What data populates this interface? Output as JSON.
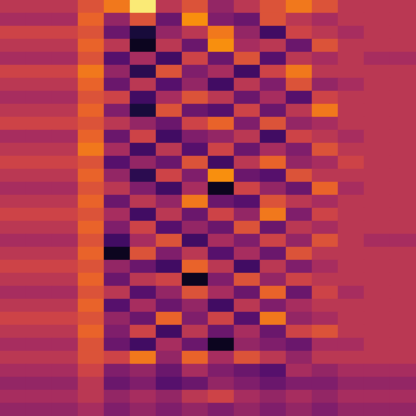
{
  "chart_data": {
    "type": "heatmap",
    "tick_labels": false,
    "color_range": [
      0,
      1
    ],
    "cells": [
      [
        0.5,
        0.5,
        0.5,
        0.6,
        0.7,
        0.95,
        0.5,
        0.6,
        0.4,
        0.5,
        0.6,
        0.7,
        0.6,
        0.5,
        0.5,
        0.5
      ],
      [
        0.45,
        0.45,
        0.45,
        0.65,
        0.4,
        0.6,
        0.3,
        0.75,
        0.35,
        0.3,
        0.6,
        0.5,
        0.45,
        0.5,
        0.5,
        0.5
      ],
      [
        0.55,
        0.55,
        0.55,
        0.6,
        0.3,
        0.1,
        0.4,
        0.5,
        0.7,
        0.4,
        0.2,
        0.55,
        0.5,
        0.45,
        0.5,
        0.5
      ],
      [
        0.5,
        0.5,
        0.5,
        0.65,
        0.5,
        0.05,
        0.5,
        0.3,
        0.75,
        0.45,
        0.5,
        0.3,
        0.6,
        0.5,
        0.5,
        0.5
      ],
      [
        0.45,
        0.45,
        0.45,
        0.6,
        0.25,
        0.45,
        0.2,
        0.55,
        0.3,
        0.6,
        0.25,
        0.5,
        0.45,
        0.5,
        0.45,
        0.45
      ],
      [
        0.55,
        0.55,
        0.55,
        0.7,
        0.4,
        0.15,
        0.6,
        0.35,
        0.45,
        0.2,
        0.55,
        0.7,
        0.5,
        0.5,
        0.5,
        0.5
      ],
      [
        0.5,
        0.5,
        0.5,
        0.65,
        0.3,
        0.5,
        0.25,
        0.4,
        0.2,
        0.5,
        0.35,
        0.6,
        0.4,
        0.45,
        0.5,
        0.5
      ],
      [
        0.45,
        0.45,
        0.45,
        0.6,
        0.55,
        0.2,
        0.45,
        0.6,
        0.5,
        0.3,
        0.45,
        0.25,
        0.55,
        0.5,
        0.5,
        0.5
      ],
      [
        0.5,
        0.5,
        0.5,
        0.65,
        0.35,
        0.1,
        0.6,
        0.3,
        0.25,
        0.55,
        0.3,
        0.5,
        0.7,
        0.5,
        0.5,
        0.5
      ],
      [
        0.55,
        0.55,
        0.55,
        0.6,
        0.5,
        0.4,
        0.3,
        0.55,
        0.65,
        0.35,
        0.6,
        0.4,
        0.45,
        0.5,
        0.5,
        0.5
      ],
      [
        0.45,
        0.45,
        0.45,
        0.65,
        0.3,
        0.55,
        0.2,
        0.35,
        0.4,
        0.5,
        0.2,
        0.55,
        0.5,
        0.45,
        0.5,
        0.5
      ],
      [
        0.5,
        0.5,
        0.5,
        0.7,
        0.45,
        0.2,
        0.5,
        0.25,
        0.55,
        0.3,
        0.45,
        0.35,
        0.6,
        0.5,
        0.5,
        0.5
      ],
      [
        0.55,
        0.55,
        0.55,
        0.6,
        0.25,
        0.4,
        0.3,
        0.6,
        0.2,
        0.5,
        0.65,
        0.4,
        0.45,
        0.55,
        0.5,
        0.5
      ],
      [
        0.5,
        0.5,
        0.5,
        0.65,
        0.4,
        0.15,
        0.55,
        0.35,
        0.75,
        0.3,
        0.25,
        0.6,
        0.5,
        0.5,
        0.5,
        0.5
      ],
      [
        0.45,
        0.45,
        0.45,
        0.6,
        0.5,
        0.35,
        0.2,
        0.45,
        0.05,
        0.55,
        0.4,
        0.3,
        0.65,
        0.45,
        0.5,
        0.5
      ],
      [
        0.5,
        0.5,
        0.5,
        0.65,
        0.3,
        0.5,
        0.4,
        0.7,
        0.3,
        0.25,
        0.6,
        0.5,
        0.45,
        0.5,
        0.5,
        0.5
      ],
      [
        0.55,
        0.55,
        0.55,
        0.6,
        0.45,
        0.2,
        0.5,
        0.3,
        0.55,
        0.4,
        0.7,
        0.35,
        0.55,
        0.5,
        0.5,
        0.5
      ],
      [
        0.5,
        0.5,
        0.5,
        0.65,
        0.35,
        0.55,
        0.25,
        0.4,
        0.3,
        0.6,
        0.3,
        0.5,
        0.45,
        0.5,
        0.5,
        0.5
      ],
      [
        0.45,
        0.45,
        0.45,
        0.6,
        0.2,
        0.45,
        0.6,
        0.2,
        0.45,
        0.35,
        0.55,
        0.4,
        0.6,
        0.5,
        0.45,
        0.45
      ],
      [
        0.5,
        0.5,
        0.5,
        0.65,
        0.05,
        0.6,
        0.35,
        0.5,
        0.25,
        0.45,
        0.3,
        0.6,
        0.5,
        0.5,
        0.5,
        0.5
      ],
      [
        0.55,
        0.55,
        0.55,
        0.6,
        0.4,
        0.3,
        0.2,
        0.65,
        0.5,
        0.2,
        0.5,
        0.35,
        0.45,
        0.5,
        0.5,
        0.5
      ],
      [
        0.5,
        0.5,
        0.5,
        0.65,
        0.3,
        0.5,
        0.55,
        0.05,
        0.35,
        0.6,
        0.4,
        0.55,
        0.5,
        0.5,
        0.5,
        0.5
      ],
      [
        0.45,
        0.45,
        0.45,
        0.6,
        0.5,
        0.25,
        0.4,
        0.6,
        0.45,
        0.3,
        0.65,
        0.3,
        0.55,
        0.45,
        0.5,
        0.5
      ],
      [
        0.5,
        0.5,
        0.5,
        0.65,
        0.25,
        0.45,
        0.3,
        0.4,
        0.2,
        0.5,
        0.35,
        0.45,
        0.5,
        0.5,
        0.5,
        0.5
      ],
      [
        0.55,
        0.55,
        0.55,
        0.6,
        0.4,
        0.3,
        0.65,
        0.35,
        0.55,
        0.25,
        0.7,
        0.4,
        0.45,
        0.5,
        0.5,
        0.5
      ],
      [
        0.5,
        0.5,
        0.5,
        0.65,
        0.35,
        0.55,
        0.2,
        0.5,
        0.3,
        0.45,
        0.3,
        0.55,
        0.6,
        0.5,
        0.5,
        0.5
      ],
      [
        0.45,
        0.45,
        0.45,
        0.6,
        0.3,
        0.2,
        0.45,
        0.3,
        0.05,
        0.4,
        0.35,
        0.3,
        0.45,
        0.45,
        0.5,
        0.5
      ],
      [
        0.5,
        0.5,
        0.5,
        0.6,
        0.55,
        0.7,
        0.4,
        0.65,
        0.45,
        0.6,
        0.5,
        0.4,
        0.5,
        0.5,
        0.5,
        0.5
      ],
      [
        0.45,
        0.45,
        0.45,
        0.55,
        0.35,
        0.4,
        0.3,
        0.45,
        0.35,
        0.3,
        0.25,
        0.45,
        0.4,
        0.45,
        0.45,
        0.45
      ],
      [
        0.4,
        0.4,
        0.4,
        0.5,
        0.3,
        0.35,
        0.25,
        0.3,
        0.4,
        0.35,
        0.3,
        0.35,
        0.35,
        0.4,
        0.4,
        0.4
      ],
      [
        0.45,
        0.45,
        0.45,
        0.5,
        0.4,
        0.45,
        0.4,
        0.5,
        0.55,
        0.45,
        0.4,
        0.45,
        0.4,
        0.45,
        0.45,
        0.45
      ],
      [
        0.4,
        0.4,
        0.4,
        0.45,
        0.35,
        0.4,
        0.35,
        0.4,
        0.35,
        0.4,
        0.35,
        0.4,
        0.35,
        0.4,
        0.4,
        0.4
      ]
    ]
  }
}
